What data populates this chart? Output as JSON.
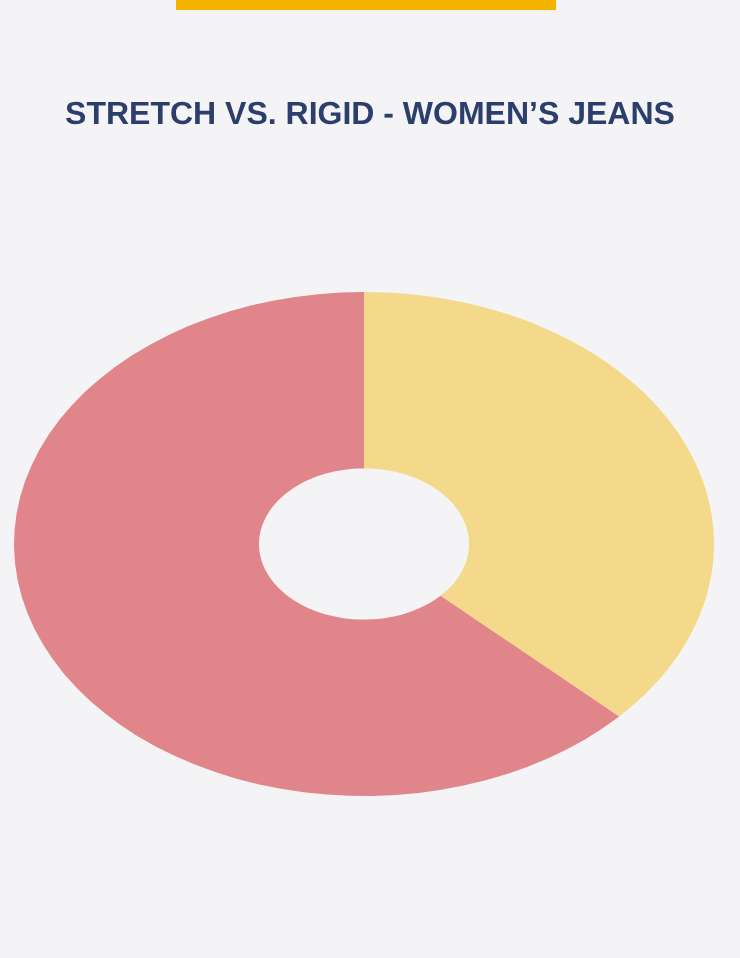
{
  "chart_data": {
    "type": "donut",
    "title": "STRETCH VS. RIGID - WOMEN’S JEANS",
    "categories": [
      null,
      null
    ],
    "values": [
      37,
      63
    ],
    "colors": [
      "#f5d98a",
      "#e0868b"
    ]
  }
}
